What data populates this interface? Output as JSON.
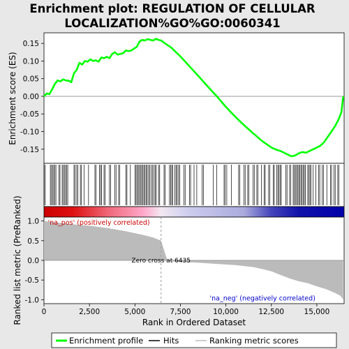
{
  "title_line1": "Enrichment plot: REGULATION OF CELLULAR",
  "title_line2": "LOCALIZATION%GO%GO:0060341",
  "chart_data": [
    {
      "type": "line",
      "panel": "enrichment",
      "ylabel": "Enrichment score (ES)",
      "xlim": [
        0,
        16500
      ],
      "ylim": [
        -0.19,
        0.18
      ],
      "yticks": [
        "0.15",
        "0.10",
        "0.05",
        "0.00",
        "-0.05",
        "-0.10",
        "-0.15"
      ],
      "ytick_values": [
        0.15,
        0.1,
        0.05,
        0.0,
        -0.05,
        -0.1,
        -0.15
      ],
      "line_color": "#00ff00",
      "series": [
        {
          "name": "Enrichment profile",
          "x": [
            0,
            150,
            300,
            450,
            600,
            750,
            900,
            1050,
            1200,
            1350,
            1500,
            1650,
            1800,
            1950,
            2100,
            2250,
            2400,
            2550,
            2700,
            2850,
            3000,
            3150,
            3300,
            3450,
            3600,
            3750,
            3900,
            4050,
            4200,
            4350,
            4500,
            4650,
            4800,
            4950,
            5100,
            5250,
            5400,
            5550,
            5700,
            5850,
            6000,
            6150,
            6300,
            6450,
            6600,
            6800,
            7000,
            7500,
            8000,
            8500,
            9000,
            9500,
            10000,
            10500,
            11000,
            11500,
            12000,
            12500,
            12800,
            13000,
            13200,
            13400,
            13600,
            13800,
            14000,
            14200,
            14400,
            14600,
            14800,
            15000,
            15200,
            15400,
            15600,
            15800,
            16000,
            16200,
            16350,
            16450
          ],
          "y": [
            0.0,
            0.008,
            0.006,
            0.02,
            0.035,
            0.045,
            0.042,
            0.048,
            0.045,
            0.044,
            0.04,
            0.065,
            0.075,
            0.095,
            0.09,
            0.1,
            0.098,
            0.105,
            0.1,
            0.102,
            0.098,
            0.11,
            0.108,
            0.112,
            0.108,
            0.12,
            0.125,
            0.118,
            0.12,
            0.122,
            0.13,
            0.128,
            0.13,
            0.135,
            0.14,
            0.155,
            0.16,
            0.158,
            0.162,
            0.16,
            0.158,
            0.163,
            0.16,
            0.158,
            0.152,
            0.145,
            0.138,
            0.113,
            0.085,
            0.057,
            0.028,
            0.0,
            -0.03,
            -0.057,
            -0.082,
            -0.105,
            -0.127,
            -0.145,
            -0.152,
            -0.155,
            -0.16,
            -0.165,
            -0.17,
            -0.168,
            -0.162,
            -0.158,
            -0.16,
            -0.155,
            -0.15,
            -0.145,
            -0.14,
            -0.13,
            -0.115,
            -0.1,
            -0.085,
            -0.065,
            -0.045,
            0.0
          ]
        }
      ]
    },
    {
      "type": "hits",
      "panel": "hits",
      "legend_label": "Hits",
      "xlim": [
        0,
        16500
      ],
      "hit_ranges": [
        [
          10,
          120
        ],
        [
          350,
          700
        ],
        [
          820,
          900
        ],
        [
          1000,
          1350
        ],
        [
          1650,
          1750
        ],
        [
          1800,
          1900
        ],
        [
          2000,
          2100
        ],
        [
          2200,
          2250
        ],
        [
          2450,
          2500
        ],
        [
          2800,
          2900
        ],
        [
          3050,
          3200
        ],
        [
          3300,
          3400
        ],
        [
          3600,
          3700
        ],
        [
          3900,
          4000
        ],
        [
          4100,
          4200
        ],
        [
          4500,
          4600
        ],
        [
          4750,
          4800
        ],
        [
          5000,
          5700
        ],
        [
          5750,
          5850
        ],
        [
          5900,
          6000
        ],
        [
          6050,
          6200
        ],
        [
          6300,
          6400
        ],
        [
          6600,
          6700
        ],
        [
          6900,
          7100
        ],
        [
          7200,
          7350
        ],
        [
          7400,
          7500
        ],
        [
          7700,
          7800
        ],
        [
          8000,
          8100
        ],
        [
          8250,
          8300
        ],
        [
          8400,
          8450
        ],
        [
          8700,
          8800
        ],
        [
          9300,
          9350
        ],
        [
          9500,
          9550
        ],
        [
          9900,
          10000
        ],
        [
          10050,
          10100
        ],
        [
          10300,
          10350
        ],
        [
          10700,
          10800
        ],
        [
          11000,
          11100
        ],
        [
          11200,
          11300
        ],
        [
          11500,
          11600
        ],
        [
          11700,
          11800
        ],
        [
          11950,
          12000
        ],
        [
          12100,
          12200
        ],
        [
          12350,
          12450
        ],
        [
          12600,
          12700
        ],
        [
          12800,
          13100
        ],
        [
          13300,
          13400
        ],
        [
          13500,
          13600
        ],
        [
          13700,
          14400
        ],
        [
          14500,
          14700
        ],
        [
          14800,
          14850
        ],
        [
          14950,
          15000
        ],
        [
          15100,
          15200
        ],
        [
          15300,
          15400
        ],
        [
          15550,
          15600
        ],
        [
          15750,
          15850
        ],
        [
          15950,
          16050
        ],
        [
          16150,
          16250
        ]
      ]
    },
    {
      "type": "heatmap",
      "panel": "ranking-color-bar",
      "xlim": [
        0,
        16500
      ],
      "stops": [
        {
          "x": 0,
          "color": "#cc0000"
        },
        {
          "x": 1600,
          "color": "#dd1111"
        },
        {
          "x": 3500,
          "color": "#ee6677"
        },
        {
          "x": 5500,
          "color": "#ffaacc"
        },
        {
          "x": 6435,
          "color": "#f2e8f2"
        },
        {
          "x": 8000,
          "color": "#ccccee"
        },
        {
          "x": 11000,
          "color": "#aaaadd"
        },
        {
          "x": 12500,
          "color": "#4444bb"
        },
        {
          "x": 14000,
          "color": "#1111aa"
        },
        {
          "x": 16500,
          "color": "#0000aa"
        }
      ]
    },
    {
      "type": "area",
      "panel": "ranked-list",
      "xlabel": "Rank in Ordered Dataset",
      "ylabel": "Ranked list metric (PreRanked)",
      "xlim": [
        0,
        16500
      ],
      "ylim": [
        -1.1,
        1.1
      ],
      "xticks": [
        "0",
        "2,500",
        "5,000",
        "7,500",
        "10,000",
        "12,500",
        "15,000"
      ],
      "xtick_values": [
        0,
        2500,
        5000,
        7500,
        10000,
        12500,
        15000
      ],
      "yticks": [
        "1.0",
        "0.5",
        "0.0",
        "-0.5",
        "-1.0"
      ],
      "ytick_values": [
        1.0,
        0.5,
        0.0,
        -0.5,
        -1.0
      ],
      "fill_color": "#bbbbbb",
      "series": [
        {
          "name": "Ranking metric scores",
          "x": [
            0,
            500,
            1000,
            1500,
            2000,
            2500,
            3000,
            3500,
            4000,
            4500,
            5000,
            5500,
            6000,
            6435,
            6800,
            7500,
            8500,
            9500,
            10500,
            11500,
            12000,
            12500,
            13000,
            13500,
            14000,
            14500,
            15000,
            15500,
            16000,
            16300,
            16450
          ],
          "y": [
            1.0,
            0.97,
            0.95,
            0.92,
            0.9,
            0.88,
            0.85,
            0.82,
            0.78,
            0.74,
            0.69,
            0.64,
            0.58,
            0.5,
            -0.02,
            -0.04,
            -0.06,
            -0.09,
            -0.12,
            -0.17,
            -0.22,
            -0.28,
            -0.37,
            -0.46,
            -0.53,
            -0.58,
            -0.66,
            -0.73,
            -0.83,
            -0.9,
            -1.0
          ]
        }
      ],
      "zero_cross_x": 6435,
      "annotations": [
        {
          "text": "Zero cross at 6435",
          "x": 6435,
          "y": 0.0
        },
        {
          "text": "'na_pos' (positively correlated)",
          "x": 100,
          "y": 0.98
        },
        {
          "text": "'na_neg' (negatively correlated)",
          "x": 9000,
          "y": -0.95
        }
      ]
    }
  ],
  "legend": {
    "items": [
      {
        "label": "Enrichment profile",
        "color": "#00ff00"
      },
      {
        "label": "Hits",
        "color": "#000000"
      },
      {
        "label": "Ranking metric scores",
        "color": "#bbbbbb"
      }
    ]
  }
}
